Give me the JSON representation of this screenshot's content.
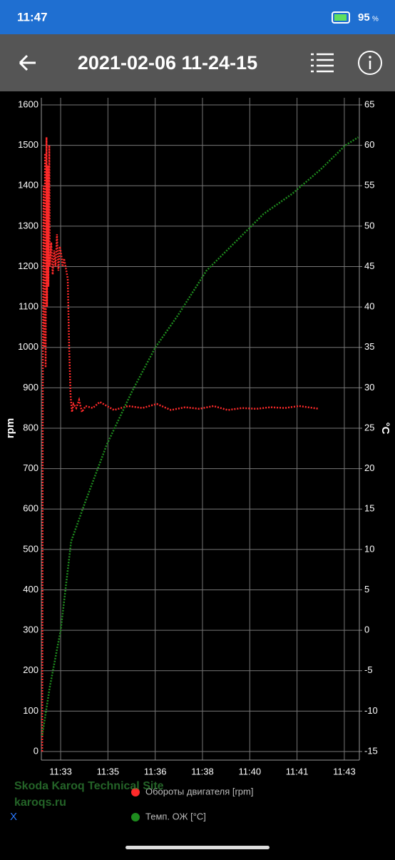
{
  "status_bar": {
    "time": "11:47",
    "battery": "95",
    "battery_unit": "%"
  },
  "toolbar": {
    "title": "2021-02-06 11-24-15"
  },
  "chart_data": {
    "type": "line",
    "grid": true,
    "ylabel": "rpm",
    "y2label": "°C",
    "xlim": [
      692.32,
      703.53
    ],
    "xticks": [
      {
        "value": 693,
        "label": "11:33"
      },
      {
        "value": 694.667,
        "label": "11:35"
      },
      {
        "value": 696.333,
        "label": "11:36"
      },
      {
        "value": 698,
        "label": "11:38"
      },
      {
        "value": 699.667,
        "label": "11:40"
      },
      {
        "value": 701.333,
        "label": "11:41"
      },
      {
        "value": 703,
        "label": "11:43"
      }
    ],
    "ylim": [
      0,
      1600
    ],
    "yticks": [
      0,
      100,
      200,
      300,
      400,
      500,
      600,
      700,
      800,
      900,
      1000,
      1100,
      1200,
      1300,
      1400,
      1500,
      1600
    ],
    "y2lim": [
      -15,
      65
    ],
    "y2ticks": [
      -15,
      -10,
      -5,
      0,
      5,
      10,
      15,
      20,
      25,
      30,
      35,
      40,
      45,
      50,
      55,
      60,
      65
    ],
    "series": [
      {
        "name": "Обороты двигателя [rpm]",
        "color": "#ff2a2a",
        "x": [
          692.35,
          692.37,
          692.4,
          692.42,
          692.45,
          692.47,
          692.5,
          692.52,
          692.55,
          692.57,
          692.6,
          692.62,
          692.67,
          692.72,
          692.77,
          692.82,
          692.87,
          692.92,
          692.97,
          693.02,
          693.07,
          693.12,
          693.2,
          693.25,
          693.3,
          693.35,
          693.4,
          693.45,
          693.55,
          693.65,
          693.75,
          693.88,
          694.13,
          694.38,
          694.88,
          695.38,
          695.88,
          696.39,
          696.89,
          697.39,
          697.89,
          698.39,
          698.89,
          699.4,
          699.9,
          700.4,
          700.9,
          701.41,
          701.91,
          702.11
        ],
        "values": [
          0,
          900,
          1400,
          1000,
          1480,
          950,
          1520,
          1100,
          1450,
          1150,
          1500,
          1200,
          1260,
          1180,
          1240,
          1200,
          1280,
          1190,
          1250,
          1230,
          1200,
          1220,
          1190,
          1170,
          1000,
          880,
          840,
          860,
          850,
          870,
          840,
          855,
          850,
          865,
          845,
          855,
          850,
          860,
          845,
          852,
          848,
          855,
          845,
          850,
          848,
          852,
          850,
          855,
          850,
          848
        ]
      },
      {
        "name": "Темп. ОЖ [°C]",
        "color": "#1e8c1e",
        "axis": "y2",
        "x": [
          692.35,
          692.62,
          693.0,
          693.37,
          693.88,
          694.63,
          695.51,
          696.34,
          697.14,
          698.14,
          699.15,
          700.15,
          701.16,
          702.16,
          703.04,
          703.49
        ],
        "values": [
          -13,
          -7,
          0,
          11,
          16,
          23,
          29.5,
          35,
          39,
          44.5,
          48,
          51.5,
          54,
          57,
          60,
          61
        ]
      }
    ]
  },
  "watermark": {
    "line1": "Skoda Karoq Technical Site",
    "line2": "karoqs.ru"
  },
  "x_button": "X"
}
